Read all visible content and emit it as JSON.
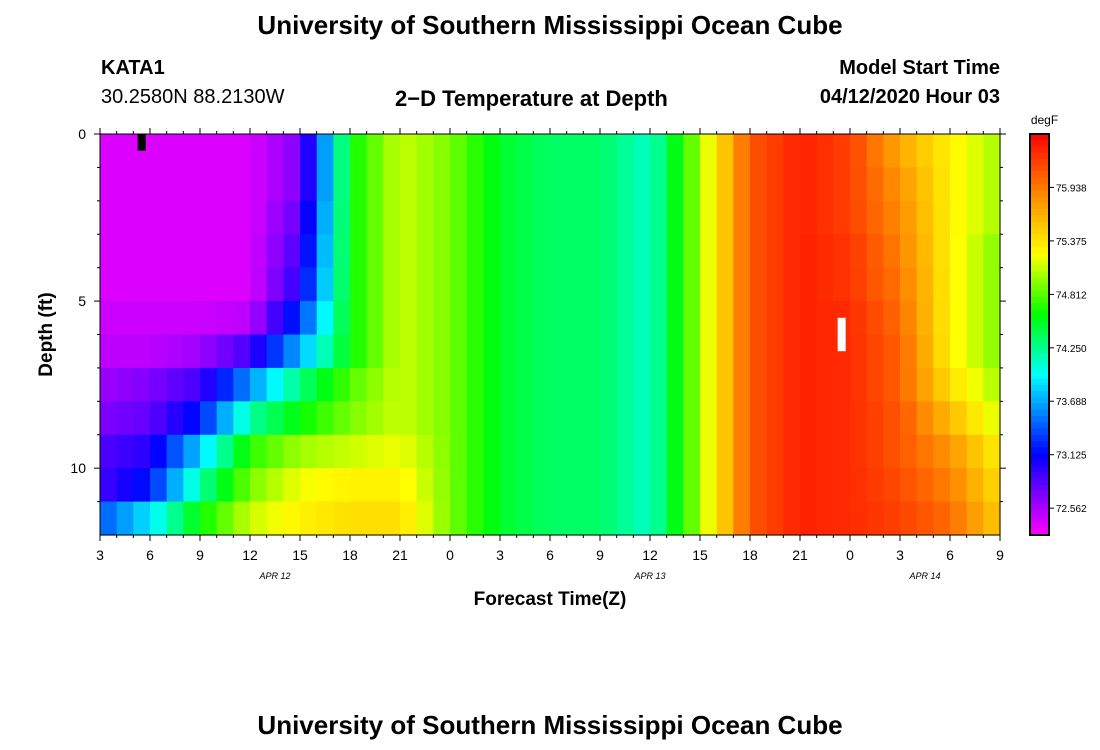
{
  "header": {
    "title_top": "University of Southern Mississippi Ocean Cube",
    "title_bottom": "University of Southern Mississippi Ocean Cube",
    "station_id": "KATA1",
    "station_coords": "30.2580N 88.2130W",
    "plot_title": "2−D Temperature at Depth",
    "model_start_label": "Model Start Time",
    "model_start_value": "04/12/2020 Hour 03"
  },
  "chart_data": {
    "type": "heatmap",
    "title": "2−D Temperature at Depth",
    "xlabel": "Forecast Time(Z)",
    "ylabel": "Depth (ft)",
    "x_range_hours": [
      0,
      54
    ],
    "y_range_ft": [
      0,
      12
    ],
    "x_ticks": [
      {
        "h": 0,
        "label": "3"
      },
      {
        "h": 3,
        "label": "6"
      },
      {
        "h": 6,
        "label": "9"
      },
      {
        "h": 9,
        "label": "12"
      },
      {
        "h": 12,
        "label": "15"
      },
      {
        "h": 15,
        "label": "18"
      },
      {
        "h": 18,
        "label": "21"
      },
      {
        "h": 21,
        "label": "0"
      },
      {
        "h": 24,
        "label": "3"
      },
      {
        "h": 27,
        "label": "6"
      },
      {
        "h": 30,
        "label": "9"
      },
      {
        "h": 33,
        "label": "12"
      },
      {
        "h": 36,
        "label": "15"
      },
      {
        "h": 39,
        "label": "18"
      },
      {
        "h": 42,
        "label": "21"
      },
      {
        "h": 45,
        "label": "0"
      },
      {
        "h": 48,
        "label": "3"
      },
      {
        "h": 51,
        "label": "6"
      },
      {
        "h": 54,
        "label": "9"
      }
    ],
    "date_labels": [
      {
        "h": 10.5,
        "label": "APR 12"
      },
      {
        "h": 33,
        "label": "APR 13"
      },
      {
        "h": 49.5,
        "label": "APR 14"
      }
    ],
    "y_ticks": [
      {
        "d": 0,
        "label": "0"
      },
      {
        "d": 5,
        "label": "5"
      },
      {
        "d": 10,
        "label": "10"
      }
    ],
    "colorbar": {
      "unit": "degF",
      "min": 72.28,
      "max": 76.5,
      "labels": [
        "75.938",
        "75.375",
        "74.812",
        "74.250",
        "73.688",
        "73.125",
        "72.562"
      ]
    },
    "depth_rows_ft": [
      0.5,
      1.5,
      2.5,
      3.5,
      4.5,
      5.5,
      6.5,
      7.5,
      8.5,
      9.5,
      10.5,
      11.5
    ],
    "time_columns_hours": [
      0,
      3,
      6,
      9,
      12,
      15,
      18,
      21,
      24,
      27,
      30,
      33,
      36,
      39,
      42,
      45,
      48,
      51,
      54
    ],
    "values_degF": [
      [
        72.4,
        72.4,
        72.4,
        72.4,
        72.7,
        74.6,
        75.1,
        74.9,
        74.5,
        74.35,
        74.35,
        74.1,
        75.0,
        76.1,
        76.35,
        76.2,
        75.7,
        75.3,
        75.0
      ],
      [
        72.4,
        72.4,
        72.4,
        72.4,
        72.7,
        74.6,
        75.1,
        74.9,
        74.5,
        74.35,
        74.35,
        74.1,
        75.0,
        76.1,
        76.35,
        76.2,
        75.8,
        75.3,
        75.0
      ],
      [
        72.4,
        72.4,
        72.4,
        72.4,
        72.8,
        74.6,
        75.1,
        74.9,
        74.5,
        74.35,
        74.35,
        74.1,
        75.0,
        76.1,
        76.35,
        76.2,
        75.85,
        75.3,
        75.0
      ],
      [
        72.4,
        72.4,
        72.4,
        72.4,
        72.9,
        74.6,
        75.1,
        74.9,
        74.5,
        74.35,
        74.35,
        74.1,
        75.0,
        76.1,
        76.35,
        76.25,
        75.9,
        75.3,
        74.9
      ],
      [
        72.4,
        72.4,
        72.4,
        72.4,
        73.0,
        74.6,
        75.1,
        74.9,
        74.5,
        74.35,
        74.35,
        74.1,
        75.0,
        76.1,
        76.35,
        76.25,
        75.95,
        75.3,
        74.9
      ],
      [
        72.45,
        72.45,
        72.45,
        72.5,
        73.3,
        74.6,
        75.1,
        74.9,
        74.5,
        74.35,
        74.35,
        74.1,
        75.0,
        76.1,
        76.35,
        76.3,
        76.0,
        75.3,
        74.9
      ],
      [
        72.5,
        72.5,
        72.6,
        72.9,
        73.7,
        74.6,
        75.1,
        74.9,
        74.5,
        74.35,
        74.35,
        74.1,
        75.0,
        76.1,
        76.35,
        76.3,
        76.05,
        75.3,
        74.9
      ],
      [
        72.6,
        72.7,
        72.9,
        73.6,
        74.3,
        74.8,
        75.1,
        74.9,
        74.5,
        74.35,
        74.35,
        74.1,
        75.0,
        76.1,
        76.35,
        76.3,
        76.05,
        75.4,
        75.0
      ],
      [
        72.7,
        72.8,
        73.2,
        74.2,
        74.6,
        74.9,
        75.1,
        74.9,
        74.5,
        74.35,
        74.35,
        74.1,
        75.0,
        76.1,
        76.35,
        76.3,
        76.1,
        75.6,
        75.1
      ],
      [
        72.85,
        73.0,
        73.8,
        74.7,
        75.0,
        75.1,
        75.2,
        74.9,
        74.5,
        74.35,
        74.35,
        74.1,
        75.0,
        76.1,
        76.35,
        76.3,
        76.1,
        75.8,
        75.3
      ],
      [
        72.9,
        73.2,
        74.2,
        74.9,
        75.2,
        75.3,
        75.3,
        74.9,
        74.5,
        74.35,
        74.35,
        74.1,
        75.0,
        76.1,
        76.35,
        76.3,
        76.15,
        75.9,
        75.4
      ],
      [
        73.4,
        73.9,
        74.6,
        75.1,
        75.3,
        75.4,
        75.4,
        74.9,
        74.5,
        74.35,
        74.35,
        74.1,
        75.0,
        76.1,
        76.35,
        76.3,
        76.2,
        76.0,
        75.5
      ]
    ],
    "markers": [
      {
        "h": 2.5,
        "depth_from": 0,
        "depth_to": 0.5,
        "color": "#000000"
      },
      {
        "h": 44.5,
        "depth_from": 5.5,
        "depth_to": 6.5,
        "color": "#ffffff"
      }
    ]
  }
}
